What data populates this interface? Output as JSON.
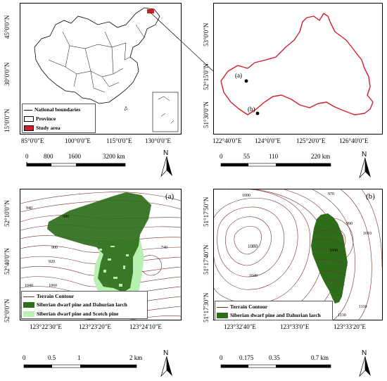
{
  "panel_a": {
    "label": "(a)",
    "y_ticks": [
      "52°0'0\"N",
      "52°40'0\"N",
      "52°10'0\"N"
    ],
    "x_ticks": [
      "123°22'30\"E",
      "123°23'20\"E",
      "123°24'10\"E"
    ],
    "contours": [
      "940",
      "880",
      "860",
      "820",
      "900",
      "980",
      "960",
      "940",
      "800",
      "760",
      "740",
      "900",
      "880",
      "920",
      "860",
      "840",
      "820",
      "1000",
      "1040",
      "1060",
      "1020",
      "980",
      "960",
      "940"
    ],
    "legend": {
      "terrain": "Terrain Contour",
      "dwarf_larch": "Siberian dwarf pine and Dahurian larch",
      "dwarf_scotch": "Siberian dwarf pine and Scotch pine"
    },
    "scale": [
      "0",
      "0.5",
      "1",
      "2 km"
    ],
    "north": "N"
  },
  "panel_b": {
    "label": "(b)",
    "y_ticks": [
      "51°17'30\"N",
      "51°17'40\"N",
      "51°17'50\"N"
    ],
    "x_ticks": [
      "123°32'40\"E",
      "123°33'0\"E",
      "123°33'20\"E"
    ],
    "contours": [
      "1000",
      "970",
      "990",
      "1010",
      "1020",
      "1050",
      "1060",
      "1080",
      "1040",
      "1030",
      "1070",
      "1110",
      "1120",
      "1130",
      "1100"
    ],
    "legend": {
      "terrain": "Terrain Contour",
      "dwarf_larch": "Siberian dwarf pine and Dahurian larch"
    },
    "scale": [
      "0",
      "0.175",
      "0.35",
      "0.7 km"
    ],
    "north": "N"
  },
  "china_map": {
    "y_ticks": [
      "15°0'0\"N",
      "30°0'0\"N",
      "45°0'0\"N"
    ],
    "x_ticks": [
      "85°0'0\"E",
      "100°0'0\"E",
      "115°0'0\"E",
      "130°0'0\"E"
    ],
    "legend": {
      "national": "National boundaries",
      "province": "Province",
      "study": "Study area"
    },
    "scale": [
      "0",
      "800",
      "1600",
      "3200 km"
    ],
    "north": "N"
  },
  "study_map": {
    "y_ticks": [
      "51°30'0\"N",
      "52°15'0\"N",
      "53°0'0\"N"
    ],
    "x_ticks": [
      "122°40'0\"E",
      "124°0'0\"E",
      "125°20'0\"E",
      "126°40'0\"E"
    ],
    "site_a": "(a)",
    "site_b": "(b)",
    "scale": [
      "0",
      "55",
      "110",
      "220 km"
    ],
    "north": "N"
  },
  "colors": {
    "boundary": "#d21d2b",
    "forest": "#2e6e1b",
    "scotch": "#b7f0b0",
    "contour": "#7a2a2a"
  }
}
